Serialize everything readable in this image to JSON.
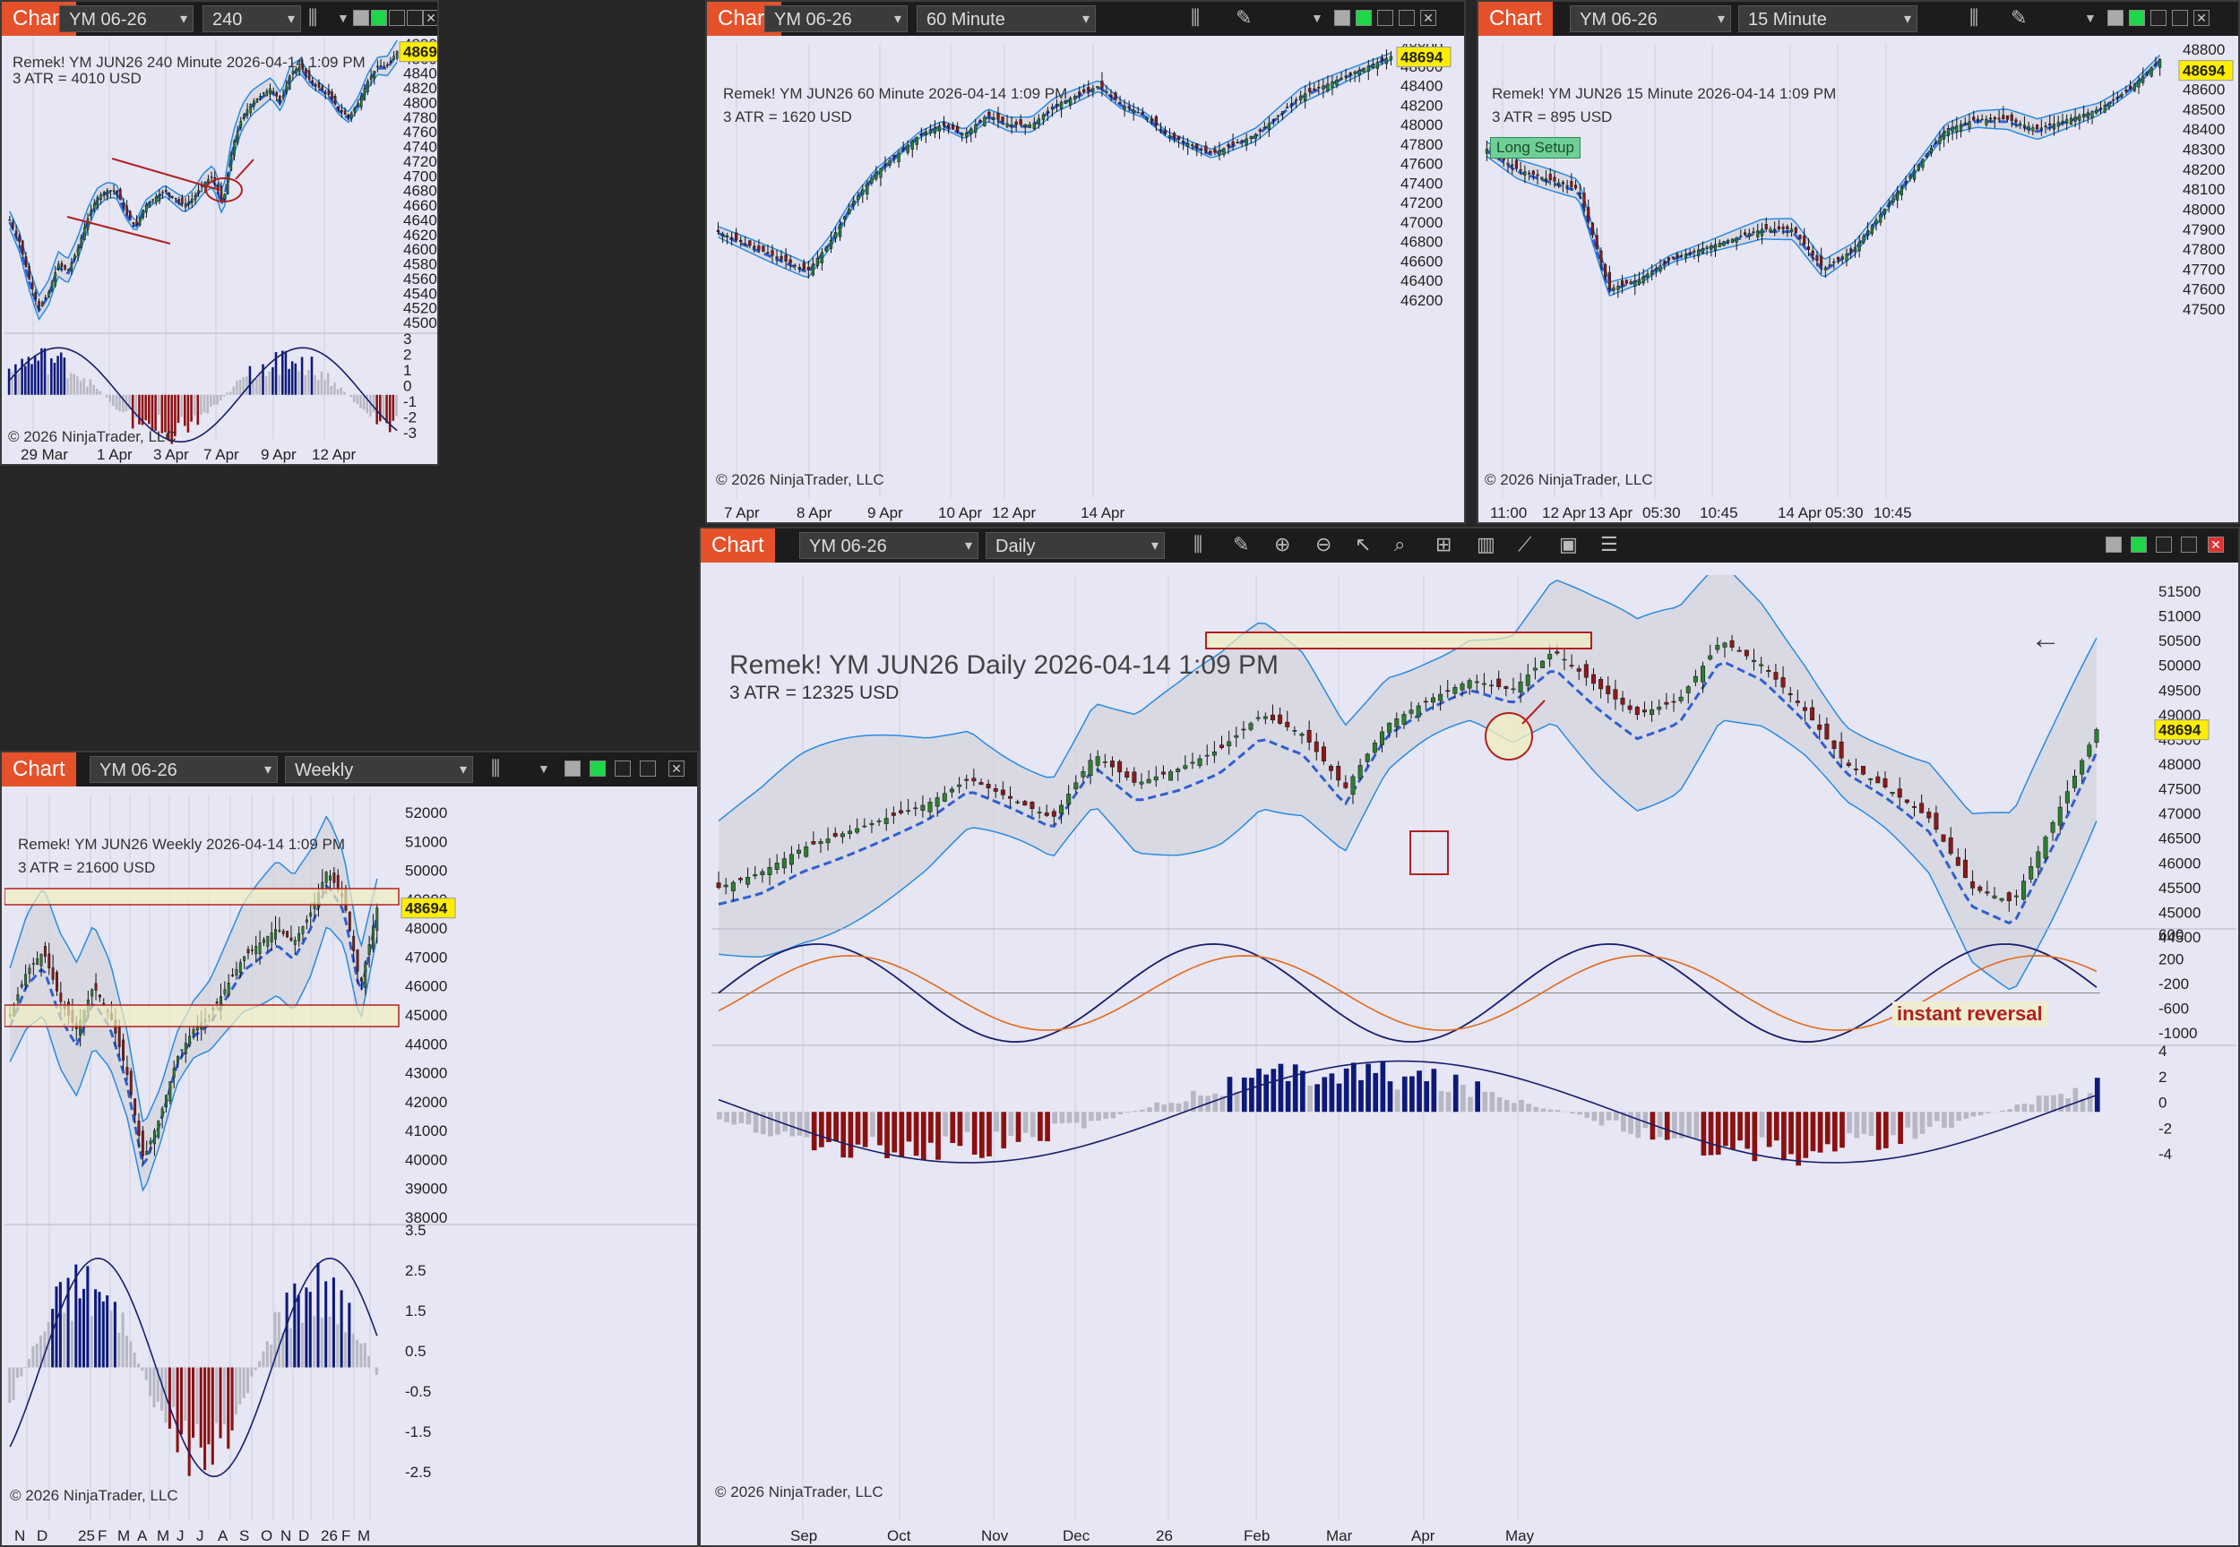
{
  "ui": {
    "chart_tag": "Chart",
    "instrument": "YM 06-26",
    "copyright": "© 2026 NinjaTrader, LLC",
    "last_price": "48694",
    "panes": {
      "p240": {
        "timeframe": "240 Minute",
        "title": "Remek!  YM JUN26  240 Minute  2026-04-14 1:09 PM",
        "atr": "3 ATR = 4010 USD"
      },
      "p60": {
        "timeframe": "60 Minute",
        "title": "Remek!  YM JUN26  60 Minute  2026-04-14 1:09 PM",
        "atr": "3 ATR = 1620 USD"
      },
      "p15": {
        "timeframe": "15 Minute",
        "title": "Remek!  YM JUN26  15 Minute  2026-04-14 1:09 PM",
        "atr": "3 ATR = 895 USD",
        "long_setup": "Long Setup"
      },
      "pW": {
        "timeframe": "Weekly",
        "title": "Remek!  YM JUN26  Weekly  2026-04-14 1:09 PM",
        "atr": "3 ATR = 21600 USD"
      },
      "pD": {
        "timeframe": "Daily",
        "title": "Remek!  YM JUN26  Daily  2026-04-14 1:09 PM",
        "atr": "3 ATR = 12325 USD",
        "annotation": "instant reversal"
      }
    }
  },
  "chart_data": [
    {
      "id": "p240",
      "type": "candlestick",
      "ylim": [
        45000,
        48800
      ],
      "y_ticks": [
        "48800",
        "48600",
        "48400",
        "48200",
        "48000",
        "47800",
        "47600",
        "47400",
        "47200",
        "47000",
        "46800",
        "46600",
        "46400",
        "46200",
        "46000",
        "45800",
        "45600",
        "45400",
        "45200",
        "45000"
      ],
      "osc_ticks": [
        "3",
        "2",
        "1",
        "0",
        "-1",
        "-2",
        "-3"
      ],
      "x_ticks": [
        "29 Mar",
        "1 Apr",
        "3 Apr",
        "7 Apr",
        "9 Apr",
        "12 Apr"
      ],
      "close_path": [
        46400,
        46100,
        45600,
        45200,
        45400,
        45800,
        45700,
        46000,
        46400,
        46700,
        46800,
        46800,
        46500,
        46300,
        46600,
        46700,
        46800,
        46700,
        46600,
        46700,
        46900,
        47000,
        46600,
        47400,
        47800,
        48000,
        48100,
        48200,
        48000,
        48400,
        48500,
        48300,
        48200,
        48100,
        47900,
        47800,
        48000,
        48300,
        48500,
        48500,
        48700
      ]
    },
    {
      "id": "p60",
      "type": "candlestick",
      "ylim": [
        46200,
        48800
      ],
      "y_ticks": [
        "48800",
        "48600",
        "48400",
        "48200",
        "48000",
        "47800",
        "47600",
        "47400",
        "47200",
        "47000",
        "46800",
        "46600",
        "46400",
        "46200"
      ],
      "x_ticks": [
        "7 Apr",
        "8 Apr",
        "9 Apr",
        "10 Apr",
        "12 Apr",
        "14 Apr"
      ],
      "close_path": [
        46900,
        46800,
        46700,
        46600,
        46500,
        46800,
        47200,
        47500,
        47700,
        47900,
        48000,
        47900,
        48100,
        48000,
        48000,
        48200,
        48300,
        48400,
        48200,
        48100,
        47900,
        47800,
        47700,
        47800,
        47900,
        48100,
        48300,
        48400,
        48500,
        48600,
        48700
      ]
    },
    {
      "id": "p15",
      "type": "candlestick",
      "ylim": [
        47500,
        48800
      ],
      "y_ticks": [
        "48800",
        "48700",
        "48600",
        "48500",
        "48400",
        "48300",
        "48200",
        "48100",
        "48000",
        "47900",
        "47800",
        "47700",
        "47600",
        "47500"
      ],
      "x_ticks": [
        "11:00",
        "12 Apr",
        "13 Apr",
        "05:30",
        "10:45",
        "14 Apr",
        "05:30",
        "10:45"
      ],
      "close_path": [
        48300,
        48200,
        48150,
        48100,
        47600,
        47650,
        47750,
        47800,
        47850,
        47900,
        47900,
        47700,
        47800,
        48000,
        48200,
        48400,
        48450,
        48450,
        48400,
        48450,
        48500,
        48600,
        48750
      ]
    },
    {
      "id": "pW",
      "type": "candlestick",
      "ylim": [
        38000,
        52000
      ],
      "y_ticks": [
        "52000",
        "51000",
        "50000",
        "49000",
        "48000",
        "47000",
        "46000",
        "45000",
        "44000",
        "43000",
        "42000",
        "41000",
        "40000",
        "39000",
        "38000"
      ],
      "osc_ticks": [
        "3.5",
        "2.5",
        "1.5",
        "0.5",
        "-0.5",
        "-1.5",
        "-2.5"
      ],
      "x_ticks": [
        "N",
        "D",
        "25",
        "F",
        "M",
        "A",
        "M",
        "J",
        "J",
        "A",
        "S",
        "O",
        "N",
        "D",
        "26",
        "F",
        "M",
        "A"
      ],
      "close_path": [
        45000,
        46500,
        47200,
        45500,
        44500,
        46000,
        45000,
        43000,
        40000,
        41500,
        43500,
        44500,
        45000,
        46000,
        47000,
        47500,
        48000,
        47500,
        48500,
        50000,
        49000,
        46000,
        48700
      ]
    },
    {
      "id": "pD",
      "type": "candlestick",
      "ylim": [
        44500,
        51500
      ],
      "y_ticks": [
        "51500",
        "51000",
        "50500",
        "50000",
        "49500",
        "49000",
        "48500",
        "48000",
        "47500",
        "47000",
        "46500",
        "46000",
        "45500",
        "45000",
        "44500"
      ],
      "osc1_ticks": [
        "600",
        "200",
        "-200",
        "-600",
        "-1000"
      ],
      "osc2_ticks": [
        "4",
        "2",
        "0",
        "-2",
        "-4"
      ],
      "x_ticks": [
        "Sep",
        "Oct",
        "Nov",
        "Dec",
        "26",
        "Feb",
        "Mar",
        "Apr",
        "May"
      ],
      "close_path": [
        45500,
        45800,
        46300,
        46600,
        46900,
        47200,
        47700,
        47300,
        46900,
        48200,
        47600,
        47900,
        48300,
        49000,
        48600,
        47500,
        48800,
        49300,
        49700,
        49500,
        50300,
        49600,
        49000,
        49300,
        50500,
        50000,
        49100,
        48000,
        47500,
        46900,
        45500,
        45200,
        46900,
        48700
      ]
    }
  ]
}
